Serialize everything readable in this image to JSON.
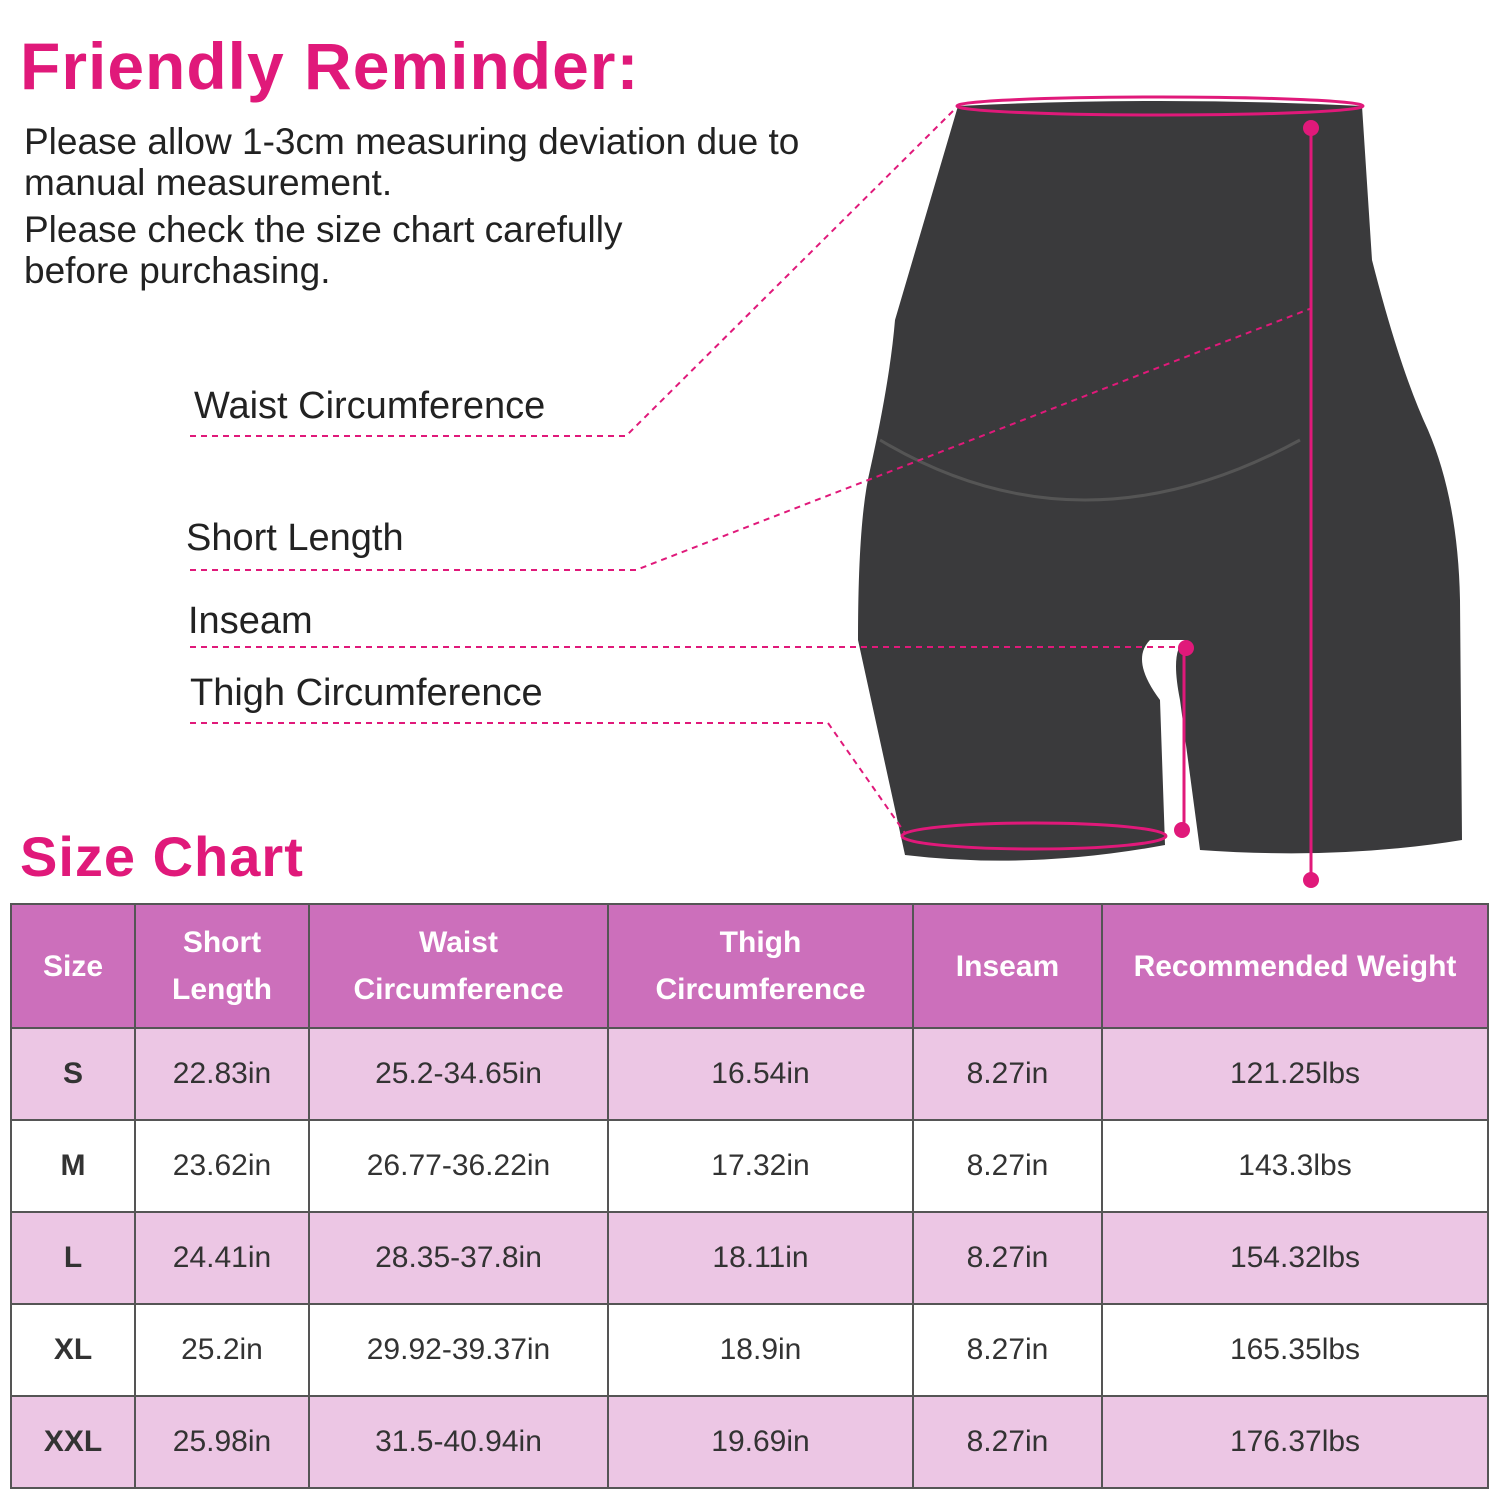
{
  "reminder": {
    "title": "Friendly Reminder:",
    "line1": "Please allow 1-3cm measuring deviation due to manual measurement.",
    "line2": "Please check the size chart carefully before purchasing."
  },
  "diagram_labels": {
    "waist": "Waist Circumference",
    "short_length": "Short Length",
    "inseam": "Inseam",
    "thigh": "Thigh Circumference"
  },
  "size_chart": {
    "title": "Size Chart",
    "headers": [
      "Size",
      "Short Length",
      "Waist Circumference",
      "Thigh Circumference",
      "Inseam",
      "Recommended Weight"
    ],
    "rows": [
      [
        "S",
        "22.83in",
        "25.2-34.65in",
        "16.54in",
        "8.27in",
        "121.25lbs"
      ],
      [
        "M",
        "23.62in",
        "26.77-36.22in",
        "17.32in",
        "8.27in",
        "143.3lbs"
      ],
      [
        "L",
        "24.41in",
        "28.35-37.8in",
        "18.11in",
        "8.27in",
        "154.32lbs"
      ],
      [
        "XL",
        "25.2in",
        "29.92-39.37in",
        "18.9in",
        "8.27in",
        "165.35lbs"
      ],
      [
        "XXL",
        "25.98in",
        "31.5-40.94in",
        "19.69in",
        "8.27in",
        "176.37lbs"
      ]
    ]
  },
  "colors": {
    "accent": "#e0197a",
    "header_bg": "#cc6fbb",
    "row_pink": "#ecc6e4",
    "garment": "#3a3a3c"
  }
}
